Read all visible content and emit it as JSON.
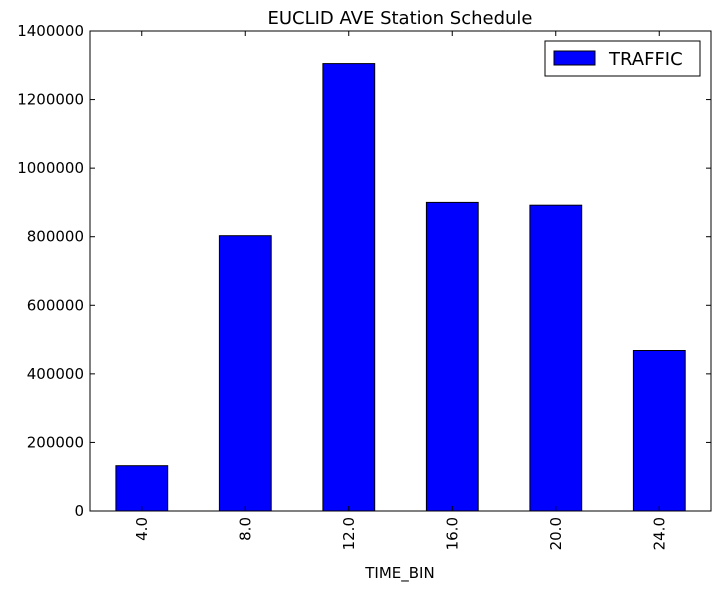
{
  "chart_data": {
    "type": "bar",
    "title": "EUCLID AVE Station Schedule",
    "xlabel": "TIME_BIN",
    "ylabel": "",
    "categories": [
      "4.0",
      "8.0",
      "12.0",
      "16.0",
      "20.0",
      "24.0"
    ],
    "series": [
      {
        "name": "TRAFFIC",
        "values": [
          132000,
          803000,
          1305000,
          900000,
          892000,
          468000
        ],
        "color": "#0000ff"
      }
    ],
    "ylim": [
      0,
      1400000
    ],
    "yticks": [
      0,
      200000,
      400000,
      600000,
      800000,
      1000000,
      1200000,
      1400000
    ],
    "grid": false,
    "legend_position": "top-right",
    "xtick_rotation": "vertical"
  }
}
